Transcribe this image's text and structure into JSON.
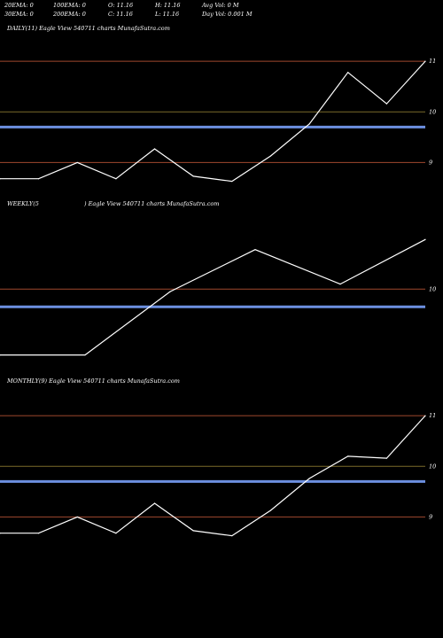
{
  "stats": {
    "row1": [
      "20EMA: 0",
      "100EMA: 0",
      "O: 11.16",
      "H: 11.16",
      "Avg Vol: 0  M"
    ],
    "row2": [
      "30EMA: 0",
      "200EMA: 0",
      "C: 11.16",
      "L: 11.16",
      "Day Vol: 0.001 M"
    ]
  },
  "colors": {
    "background": "#000000",
    "price_line": "#ffffff",
    "ema_line": "#6c8fe0",
    "level_red": "#a0482e",
    "level_olive": "#7a6a2a"
  },
  "chart_data": [
    {
      "type": "line",
      "title": "DAILY(11) Eagle  View  540711 charts MunafaSutra.com",
      "y_tick_labels": [
        "11",
        "10",
        "9"
      ],
      "ylim": [
        8.5,
        11.3
      ],
      "levels": [
        {
          "value": 11.0,
          "color": "red"
        },
        {
          "value": 10.0,
          "color": "olive"
        },
        {
          "value": 9.0,
          "color": "red"
        }
      ],
      "ema_level": 9.7,
      "series": [
        {
          "values": [
            8.68,
            8.68,
            9.0,
            8.68,
            9.27,
            8.73,
            8.63,
            9.13,
            9.76,
            10.78,
            10.16,
            11.0
          ]
        }
      ]
    },
    {
      "type": "line",
      "title_left": "WEEKLY(5",
      "title_right": ") Eagle  View  540711 charts MunafaSutra.com",
      "y_tick_labels": [
        "10"
      ],
      "ylim": [
        8.5,
        11.3
      ],
      "levels": [
        {
          "value": 10.0,
          "color": "red"
        }
      ],
      "ema_level": 9.65,
      "series": [
        {
          "values": [
            8.7,
            8.7,
            9.95,
            10.78,
            10.1,
            10.98
          ]
        }
      ]
    },
    {
      "type": "line",
      "title": "MONTHLY(9) Eagle  View  540711 charts MunafaSutra.com",
      "y_tick_labels": [
        "11",
        "10",
        "9"
      ],
      "ylim": [
        8.5,
        11.3
      ],
      "levels": [
        {
          "value": 11.0,
          "color": "red"
        },
        {
          "value": 10.0,
          "color": "olive"
        },
        {
          "value": 9.0,
          "color": "red"
        }
      ],
      "ema_level": 9.7,
      "series": [
        {
          "values": [
            8.68,
            8.68,
            9.0,
            8.68,
            9.27,
            8.73,
            8.63,
            9.13,
            9.76,
            10.2,
            10.16,
            11.0
          ]
        }
      ]
    }
  ]
}
